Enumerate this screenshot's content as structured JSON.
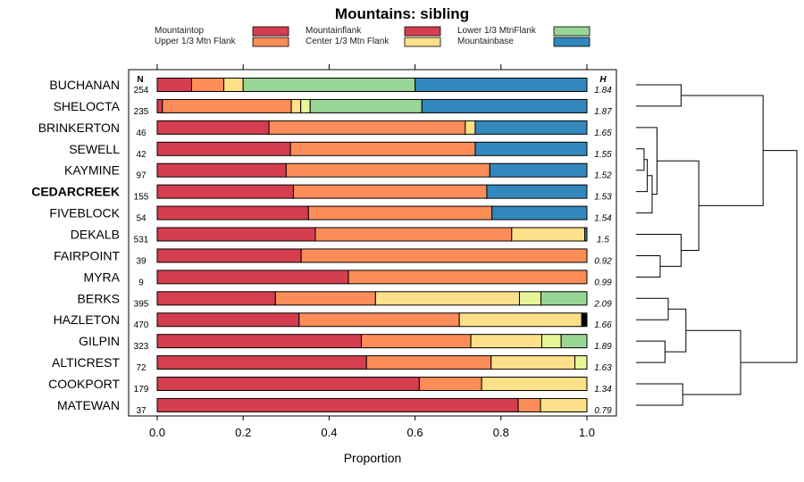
{
  "chart_data": {
    "type": "bar",
    "orientation": "horizontal-stacked",
    "title": "Mountains: sibling",
    "xlabel": "Proportion",
    "xlim": [
      0,
      1
    ],
    "xticks": [
      "0.0",
      "0.2",
      "0.4",
      "0.6",
      "0.8",
      "1.0"
    ],
    "n_header": "N",
    "h_header": "H",
    "legend": [
      {
        "name": "Mountaintop",
        "color": "#d53e4f"
      },
      {
        "name": "Upper 1/3 Mtn Flank",
        "color": "#fc8d59"
      },
      {
        "name": "Mountainflank",
        "color": "#d53e4f"
      },
      {
        "name": "Center 1/3 Mtn Flank",
        "color": "#fee08b"
      },
      {
        "name": "Lower 1/3 MtnFlank",
        "color": "#99d594"
      },
      {
        "name": "Mountainbase",
        "color": "#3288bd"
      }
    ],
    "categories": [
      "BUCHANAN",
      "SHELOCTA",
      "BRINKERTON",
      "SEWELL",
      "KAYMINE",
      "CEDARCREEK",
      "FIVEBLOCK",
      "DEKALB",
      "FAIRPOINT",
      "MYRA",
      "BERKS",
      "HAZLETON",
      "GILPIN",
      "ALTICREST",
      "COOKPORT",
      "MATEWAN"
    ],
    "highlight": "CEDARCREEK",
    "n": [
      254,
      235,
      46,
      42,
      97,
      155,
      54,
      531,
      39,
      9,
      395,
      470,
      323,
      72,
      179,
      37
    ],
    "h": [
      "1.84",
      "1.87",
      "1.65",
      "1.55",
      "1.52",
      "1.53",
      "1.54",
      "1.5",
      "0.92",
      "0.99",
      "2.09",
      "1.66",
      "1.89",
      "1.63",
      "1.34",
      "0.79"
    ],
    "rows": [
      [
        0.08,
        0.075,
        0.045,
        0.4,
        0.4
      ],
      [
        0.012,
        0.3,
        0.022,
        0.022,
        0.26,
        0.384
      ],
      [
        0.26,
        0.457,
        0.023,
        0.26
      ],
      [
        0.31,
        0.43,
        0.26
      ],
      [
        0.3,
        0.474,
        0.226
      ],
      [
        0.317,
        0.45,
        0.233
      ],
      [
        0.352,
        0.427,
        0.221
      ],
      [
        0.368,
        0.457,
        0.17,
        0.005
      ],
      [
        0.335,
        0.665
      ],
      [
        0.445,
        0.555
      ],
      [
        0.275,
        0.233,
        0.335,
        0.05,
        0.107
      ],
      [
        0.33,
        0.373,
        0.285,
        0.012
      ],
      [
        0.475,
        0.255,
        0.165,
        0.045,
        0.06
      ],
      [
        0.487,
        0.29,
        0.195,
        0.028
      ],
      [
        0.61,
        0.145,
        0.245
      ],
      [
        0.84,
        0.052,
        0.108
      ]
    ],
    "row_colors": [
      [
        "#d53e4f",
        "#fc8d59",
        "#fee08b",
        "#99d594",
        "#3288bd"
      ],
      [
        "#d53e4f",
        "#fc8d59",
        "#fee08b",
        "#e6f598",
        "#99d594",
        "#3288bd"
      ],
      [
        "#d53e4f",
        "#fc8d59",
        "#fee08b",
        "#3288bd"
      ],
      [
        "#d53e4f",
        "#fc8d59",
        "#3288bd"
      ],
      [
        "#d53e4f",
        "#fc8d59",
        "#3288bd"
      ],
      [
        "#d53e4f",
        "#fc8d59",
        "#3288bd"
      ],
      [
        "#d53e4f",
        "#fc8d59",
        "#3288bd"
      ],
      [
        "#d53e4f",
        "#fc8d59",
        "#fee08b",
        "#3288bd"
      ],
      [
        "#d53e4f",
        "#fc8d59"
      ],
      [
        "#d53e4f",
        "#fc8d59"
      ],
      [
        "#d53e4f",
        "#fc8d59",
        "#fee08b",
        "#e6f598",
        "#99d594"
      ],
      [
        "#d53e4f",
        "#fc8d59",
        "#fee08b",
        "#000000"
      ],
      [
        "#d53e4f",
        "#fc8d59",
        "#fee08b",
        "#e6f598",
        "#99d594"
      ],
      [
        "#d53e4f",
        "#fc8d59",
        "#fee08b",
        "#e6f598"
      ],
      [
        "#d53e4f",
        "#fc8d59",
        "#fee08b"
      ],
      [
        "#d53e4f",
        "#fc8d59",
        "#fee08b"
      ]
    ],
    "dendrogram": {
      "leaves_order": "top-to-bottom",
      "max_height": 1.0,
      "merges": [
        {
          "a": "L0",
          "b": "L1",
          "h": 0.28
        },
        {
          "a": "L3",
          "b": "L4",
          "h": 0.05
        },
        {
          "a": "N2",
          "b": "L5",
          "h": 0.07
        },
        {
          "a": "N3",
          "b": "L6",
          "h": 0.1
        },
        {
          "a": "L2",
          "b": "N4",
          "h": 0.13
        },
        {
          "a": "L8",
          "b": "L9",
          "h": 0.15
        },
        {
          "a": "L7",
          "b": "N6",
          "h": 0.28
        },
        {
          "a": "N5",
          "b": "N7",
          "h": 0.39
        },
        {
          "a": "L10",
          "b": "L11",
          "h": 0.2
        },
        {
          "a": "L12",
          "b": "L13",
          "h": 0.18
        },
        {
          "a": "N9",
          "b": "N10",
          "h": 0.31
        },
        {
          "a": "L14",
          "b": "L15",
          "h": 0.29
        },
        {
          "a": "N11",
          "b": "N12",
          "h": 0.65
        },
        {
          "a": "N1",
          "b": "N8",
          "h": 0.79
        },
        {
          "a": "N14",
          "b": "N13",
          "h": 1.0
        }
      ]
    }
  }
}
